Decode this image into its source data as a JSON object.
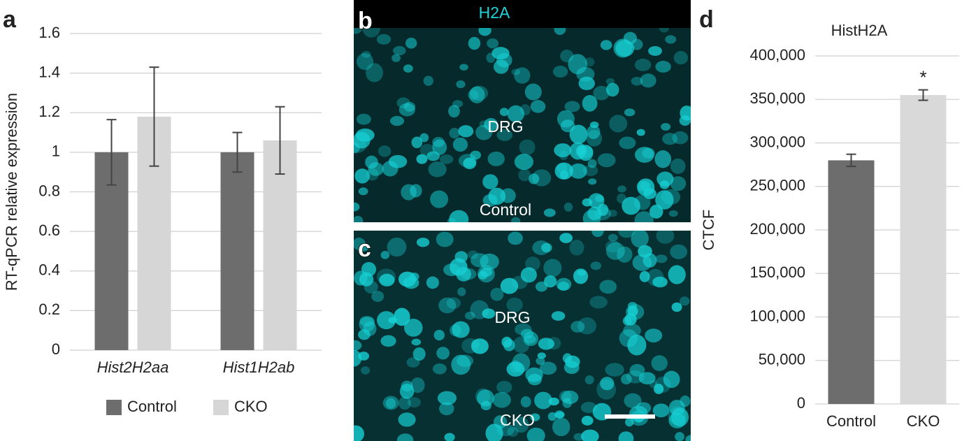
{
  "panel_labels": [
    "a",
    "b",
    "c",
    "d"
  ],
  "images": [
    {
      "header": "H2A",
      "region": "DRG",
      "group": "Control"
    },
    {
      "region": "DRG",
      "group": "CKO"
    }
  ],
  "chart_data": [
    {
      "type": "bar",
      "y_label": "RT-qPCR relative expression",
      "categories": [
        "Hist2H2aa",
        "Hist1H2ab"
      ],
      "series": [
        {
          "name": "Control",
          "color": "#6d6d6d",
          "values": [
            1.0,
            1.0
          ],
          "errors": [
            0.165,
            0.1
          ]
        },
        {
          "name": "CKO",
          "color": "#d6d6d6",
          "values": [
            1.18,
            1.06
          ],
          "errors": [
            0.25,
            0.17
          ]
        }
      ],
      "ylim": [
        0,
        1.6
      ],
      "yticks": [
        0,
        0.2,
        0.4,
        0.6,
        0.8,
        1,
        1.2,
        1.4,
        1.6
      ],
      "grid": true,
      "legend": "bottom"
    },
    {
      "type": "bar",
      "title": "HistH2A",
      "y_label": "CTCF",
      "categories": [
        "Control",
        "CKO"
      ],
      "values": [
        280000,
        355000
      ],
      "errors": [
        7000,
        6000
      ],
      "colors": [
        "#6d6d6d",
        "#d9d9d9"
      ],
      "annotation": "*",
      "ylim": [
        0,
        400000
      ],
      "yticks": [
        0,
        {
          "value": 50000,
          "label": "50,000"
        },
        {
          "value": 100000,
          "label": "100,000"
        },
        {
          "value": 150000,
          "label": "150,000"
        },
        {
          "value": 200000,
          "label": "200,000"
        },
        {
          "value": 250000,
          "label": "250,000"
        },
        {
          "value": 300000,
          "label": "300,000"
        },
        {
          "value": 350000,
          "label": "350,000"
        },
        {
          "value": 400000,
          "label": "400,000"
        }
      ],
      "grid": true
    }
  ]
}
